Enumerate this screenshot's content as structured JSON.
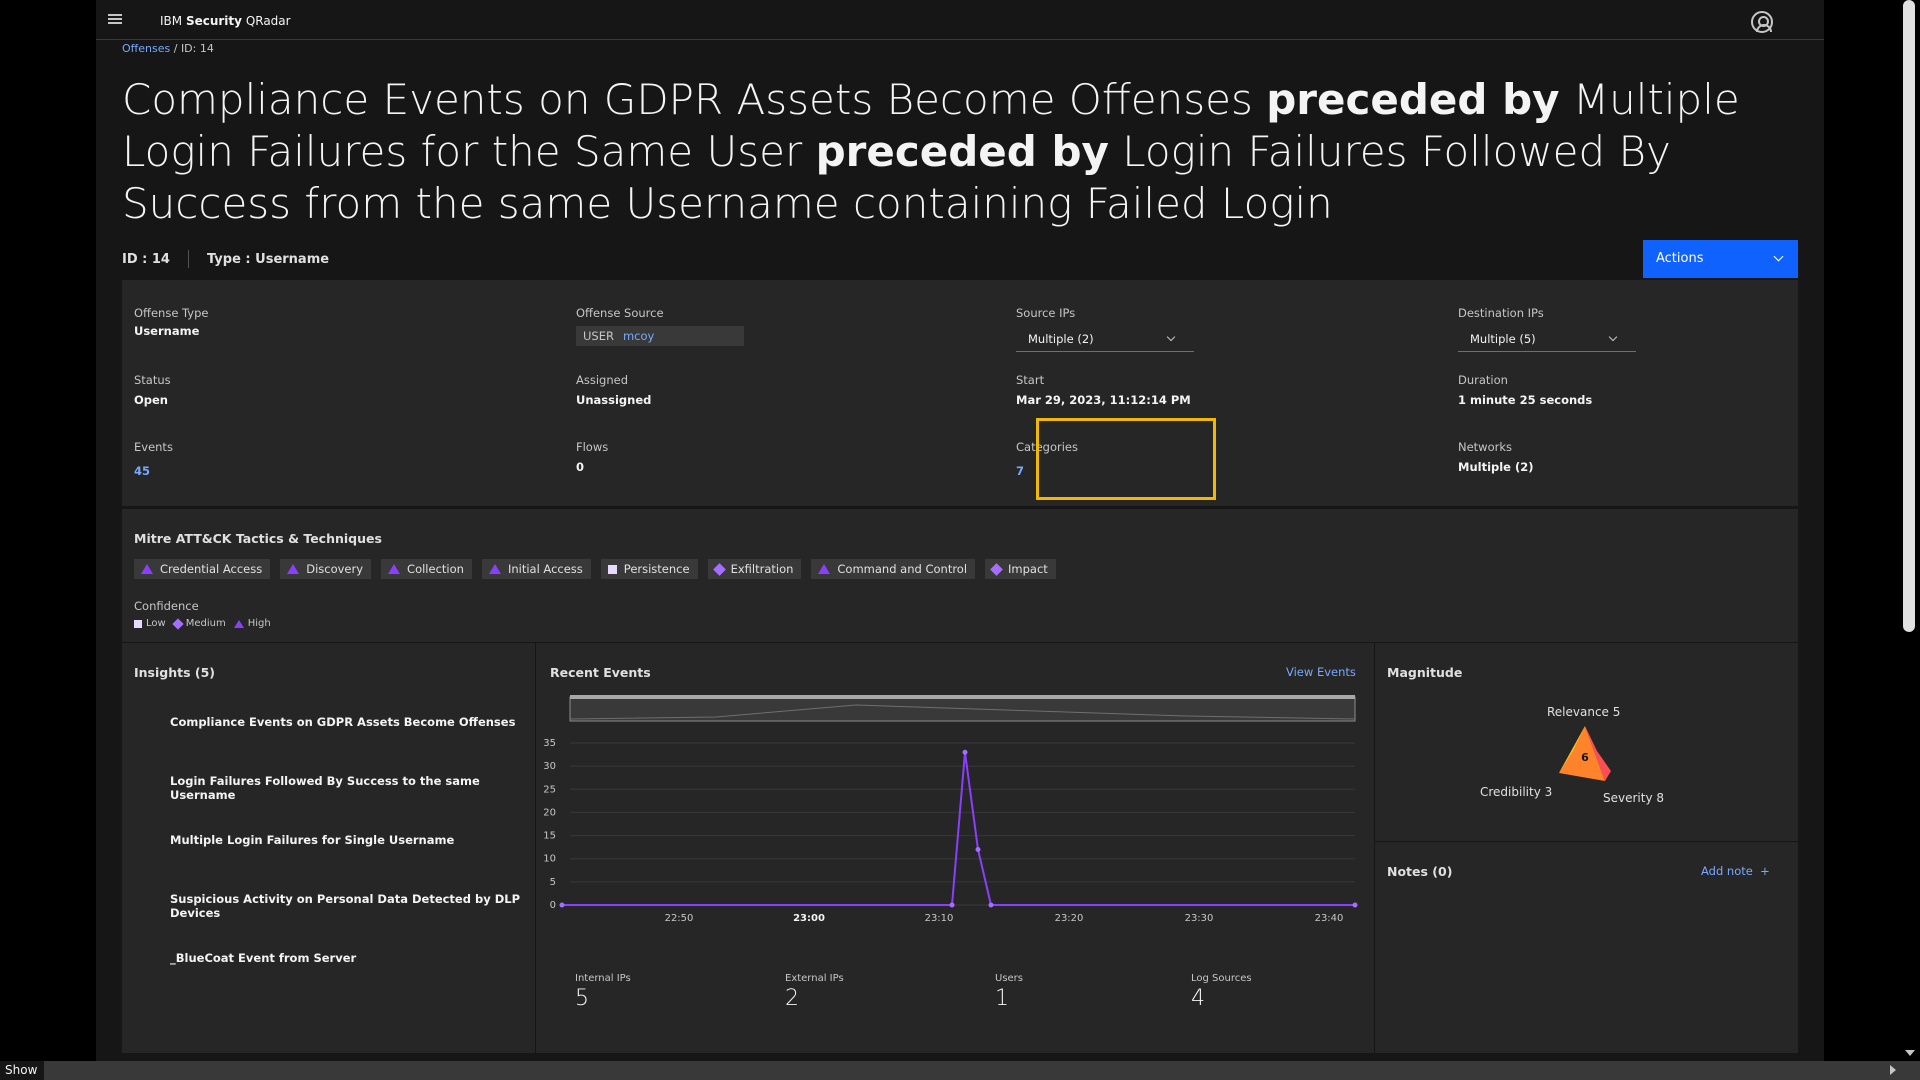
{
  "header": {
    "brand_prefix": "IBM",
    "brand_bold": "Security",
    "brand_suffix": "QRadar"
  },
  "breadcrumb": {
    "root": "Offenses",
    "separator": "/",
    "current": "ID: 14"
  },
  "title": {
    "part1": "Compliance Events on GDPR Assets Become Offenses ",
    "bold1": "preceded by",
    "part2": " Multiple Login Failures for the Same User ",
    "bold2": "preceded by",
    "part3": " Login Failures Followed By Success from the same Username containing Failed Login"
  },
  "meta": {
    "id": "ID : 14",
    "type": "Type : Username"
  },
  "actions": {
    "label": "Actions"
  },
  "details": {
    "offense_type": {
      "label": "Offense Type",
      "value": "Username"
    },
    "offense_source": {
      "label": "Offense Source",
      "key": "USER",
      "value": "mcoy"
    },
    "source_ips": {
      "label": "Source IPs",
      "value": "Multiple (2)"
    },
    "destination_ips": {
      "label": "Destination IPs",
      "value": "Multiple (5)"
    },
    "status": {
      "label": "Status",
      "value": "Open"
    },
    "assigned": {
      "label": "Assigned",
      "value": "Unassigned"
    },
    "start": {
      "label": "Start",
      "value": "Mar 29, 2023, 11:12:14 PM"
    },
    "duration": {
      "label": "Duration",
      "value": "1 minute 25 seconds"
    },
    "events": {
      "label": "Events",
      "value": "45"
    },
    "flows": {
      "label": "Flows",
      "value": "0"
    },
    "categories": {
      "label": "Categories",
      "value": "7"
    },
    "networks": {
      "label": "Networks",
      "value": "Multiple (2)"
    }
  },
  "mitre": {
    "title": "Mitre ATT&CK Tactics & Techniques",
    "chips": [
      {
        "label": "Credential Access",
        "confidence": "high"
      },
      {
        "label": "Discovery",
        "confidence": "high"
      },
      {
        "label": "Collection",
        "confidence": "high"
      },
      {
        "label": "Initial Access",
        "confidence": "high"
      },
      {
        "label": "Persistence",
        "confidence": "low"
      },
      {
        "label": "Exfiltration",
        "confidence": "medium"
      },
      {
        "label": "Command and Control",
        "confidence": "high"
      },
      {
        "label": "Impact",
        "confidence": "medium"
      }
    ],
    "confidence_label": "Confidence",
    "legend": {
      "low": "Low",
      "medium": "Medium",
      "high": "High"
    }
  },
  "insights": {
    "title": "Insights (5)",
    "items": [
      "Compliance Events on GDPR Assets Become Offenses",
      "Login Failures Followed By Success to the same Username",
      "Multiple Login Failures for Single Username",
      "Suspicious Activity on Personal Data Detected by DLP Devices",
      "_BlueCoat Event from Server"
    ]
  },
  "recent_events": {
    "title": "Recent Events",
    "view_link": "View Events",
    "stats": [
      {
        "label": "Internal IPs",
        "value": "5"
      },
      {
        "label": "External IPs",
        "value": "2"
      },
      {
        "label": "Users",
        "value": "1"
      },
      {
        "label": "Log Sources",
        "value": "4"
      }
    ]
  },
  "chart_data": {
    "type": "line",
    "x_ticks": [
      "22:50",
      "23:00",
      "23:10",
      "23:20",
      "23:30",
      "23:40"
    ],
    "y_ticks": [
      0,
      5,
      10,
      15,
      20,
      25,
      30,
      35
    ],
    "ylim": [
      0,
      35
    ],
    "x_minutes_range": [
      22.42,
      23.69
    ],
    "series": [
      {
        "x": [
          "22:41",
          "23:11",
          "23:12",
          "23:13",
          "23:14",
          "23:42"
        ],
        "values": [
          0,
          0,
          33,
          12,
          0,
          0
        ]
      }
    ],
    "color": "#8a3ffc"
  },
  "magnitude": {
    "title": "Magnitude",
    "value": "6",
    "relevance": "Relevance 5",
    "credibility": "Credibility 3",
    "severity": "Severity 8"
  },
  "notes": {
    "title": "Notes (0)",
    "add_label": "Add note",
    "add_icon": "+"
  },
  "bottom": {
    "show_label": "Show"
  }
}
